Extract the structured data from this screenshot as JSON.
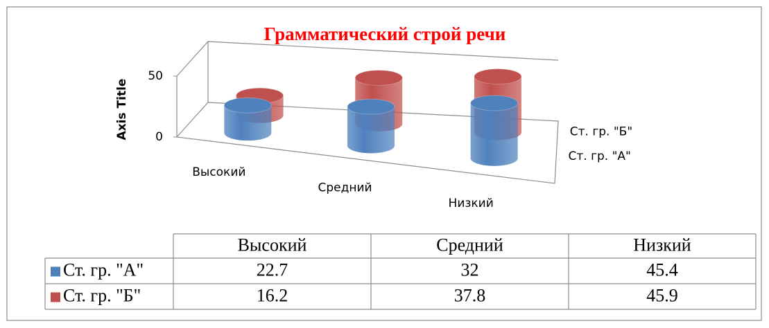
{
  "chart_data": {
    "type": "cylinder3d",
    "title": "Грамматический строй речи",
    "y_axis_title": "Axis Title",
    "categories": [
      "Высокий",
      "Средний",
      "Низкий"
    ],
    "series": [
      {
        "name": "Ст. гр. \"А\"",
        "color": "#4f81bd",
        "values": [
          22.7,
          32,
          45.4
        ]
      },
      {
        "name": "Ст. гр. \"Б\"",
        "color": "#c0504d",
        "values": [
          16.2,
          37.8,
          45.9
        ]
      }
    ],
    "ylim": [
      0,
      50
    ],
    "yticks": [
      0,
      50
    ],
    "data_table": true
  }
}
